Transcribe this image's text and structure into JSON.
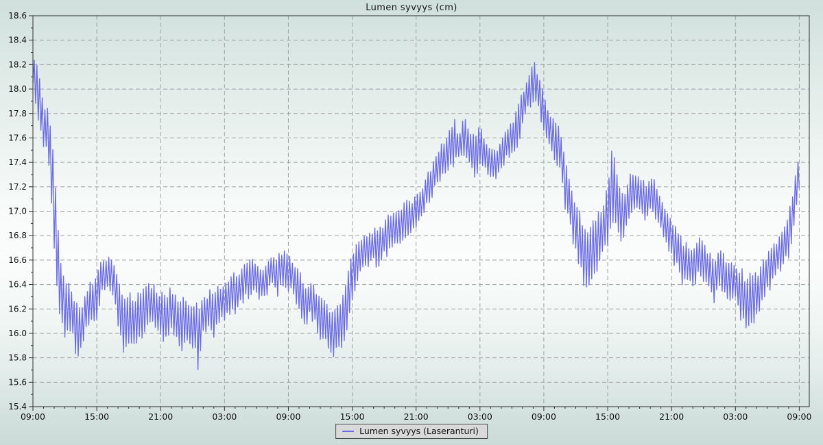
{
  "title": "Lumen syvyys (cm)",
  "legend": {
    "label": "Lumen syvyys (Laseranturi)"
  },
  "colors": {
    "line": "#6b6be4",
    "grid": "#a0a0a0",
    "axis": "#2e2e2e",
    "tick_text": "#111111",
    "legend_bg": "#d9d9da",
    "legend_border": "#4a4a4a"
  },
  "chart_data": {
    "type": "line",
    "title": "Lumen syvyys (cm)",
    "series_name": "Lumen syvyys (Laseranturi)",
    "xlabel": "",
    "ylabel": "",
    "grid": true,
    "legend_position": "bottom-center",
    "ylim": [
      15.4,
      18.6
    ],
    "y_major_step": 0.2,
    "y_minor_step": 0.1,
    "y_tick_labels": [
      "15.4",
      "15.6",
      "15.8",
      "16.0",
      "16.2",
      "16.4",
      "16.6",
      "16.8",
      "17.0",
      "17.2",
      "17.4",
      "17.6",
      "17.8",
      "18.0",
      "18.2",
      "18.4",
      "18.6"
    ],
    "x_hours_total": 72,
    "x_major_step_hours": 6,
    "x_minor_step_hours": 1,
    "x_tick_labels": [
      "09:00",
      "15:00",
      "21:00",
      "03:00",
      "09:00",
      "15:00",
      "21:00",
      "03:00",
      "09:00",
      "15:00",
      "21:00",
      "03:00",
      "09:00"
    ],
    "envelope_description": "Noisy laser-sensor snow-depth trace read from plot as 30-min bins: [hours_from_start, min_cm, max_cm]",
    "envelope": [
      [
        0.0,
        18.05,
        18.32
      ],
      [
        0.5,
        17.7,
        18.22
      ],
      [
        1.0,
        17.5,
        17.85
      ],
      [
        1.5,
        17.35,
        17.95
      ],
      [
        2.0,
        16.5,
        17.45
      ],
      [
        2.5,
        16.05,
        16.7
      ],
      [
        3.0,
        15.95,
        16.45
      ],
      [
        3.5,
        16.0,
        16.4
      ],
      [
        4.0,
        15.8,
        16.3
      ],
      [
        4.5,
        15.78,
        16.25
      ],
      [
        5.0,
        16.0,
        16.4
      ],
      [
        5.5,
        16.05,
        16.45
      ],
      [
        6.0,
        16.1,
        16.5
      ],
      [
        6.5,
        16.3,
        16.62
      ],
      [
        7.0,
        16.35,
        16.65
      ],
      [
        7.5,
        16.3,
        16.6
      ],
      [
        8.0,
        16.05,
        16.45
      ],
      [
        8.5,
        15.8,
        16.3
      ],
      [
        9.0,
        15.9,
        16.35
      ],
      [
        9.5,
        15.9,
        16.3
      ],
      [
        10.0,
        15.9,
        16.35
      ],
      [
        10.5,
        16.0,
        16.4
      ],
      [
        11.0,
        16.05,
        16.45
      ],
      [
        11.5,
        16.0,
        16.4
      ],
      [
        12.0,
        15.9,
        16.35
      ],
      [
        12.5,
        15.95,
        16.35
      ],
      [
        13.0,
        16.0,
        16.4
      ],
      [
        13.5,
        15.9,
        16.35
      ],
      [
        14.0,
        15.85,
        16.3
      ],
      [
        14.5,
        15.9,
        16.3
      ],
      [
        15.0,
        15.85,
        16.3
      ],
      [
        15.5,
        15.7,
        16.25
      ],
      [
        16.0,
        15.95,
        16.3
      ],
      [
        16.5,
        16.0,
        16.35
      ],
      [
        17.0,
        15.95,
        16.4
      ],
      [
        17.5,
        16.05,
        16.4
      ],
      [
        18.0,
        16.1,
        16.45
      ],
      [
        18.5,
        16.1,
        16.5
      ],
      [
        19.0,
        16.15,
        16.5
      ],
      [
        19.5,
        16.2,
        16.55
      ],
      [
        20.0,
        16.25,
        16.6
      ],
      [
        20.5,
        16.3,
        16.65
      ],
      [
        21.0,
        16.3,
        16.6
      ],
      [
        21.5,
        16.25,
        16.55
      ],
      [
        22.0,
        16.3,
        16.6
      ],
      [
        22.5,
        16.35,
        16.65
      ],
      [
        23.0,
        16.3,
        16.65
      ],
      [
        23.5,
        16.35,
        16.7
      ],
      [
        24.0,
        16.3,
        16.65
      ],
      [
        24.5,
        16.3,
        16.6
      ],
      [
        25.0,
        16.15,
        16.55
      ],
      [
        25.5,
        16.0,
        16.4
      ],
      [
        26.0,
        16.1,
        16.45
      ],
      [
        26.5,
        16.05,
        16.4
      ],
      [
        27.0,
        15.85,
        16.3
      ],
      [
        27.5,
        15.9,
        16.3
      ],
      [
        28.0,
        15.8,
        16.2
      ],
      [
        28.5,
        15.8,
        16.25
      ],
      [
        29.0,
        15.8,
        16.3
      ],
      [
        29.5,
        16.0,
        16.5
      ],
      [
        30.0,
        16.2,
        16.7
      ],
      [
        30.5,
        16.4,
        16.75
      ],
      [
        31.0,
        16.5,
        16.85
      ],
      [
        31.5,
        16.5,
        16.8
      ],
      [
        32.0,
        16.55,
        16.9
      ],
      [
        32.5,
        16.5,
        16.85
      ],
      [
        33.0,
        16.6,
        16.95
      ],
      [
        33.5,
        16.65,
        17.0
      ],
      [
        34.0,
        16.7,
        17.0
      ],
      [
        34.5,
        16.7,
        17.05
      ],
      [
        35.0,
        16.75,
        17.1
      ],
      [
        35.5,
        16.8,
        17.1
      ],
      [
        36.0,
        16.85,
        17.15
      ],
      [
        36.5,
        16.9,
        17.2
      ],
      [
        37.0,
        17.0,
        17.3
      ],
      [
        37.5,
        17.1,
        17.4
      ],
      [
        38.0,
        17.2,
        17.5
      ],
      [
        38.5,
        17.25,
        17.6
      ],
      [
        39.0,
        17.3,
        17.65
      ],
      [
        39.5,
        17.35,
        17.8
      ],
      [
        40.0,
        17.4,
        17.65
      ],
      [
        40.5,
        17.4,
        17.8
      ],
      [
        41.0,
        17.35,
        17.7
      ],
      [
        41.5,
        17.2,
        17.65
      ],
      [
        42.0,
        17.35,
        17.8
      ],
      [
        42.5,
        17.3,
        17.6
      ],
      [
        43.0,
        17.25,
        17.55
      ],
      [
        43.5,
        17.25,
        17.5
      ],
      [
        44.0,
        17.3,
        17.6
      ],
      [
        44.5,
        17.4,
        17.7
      ],
      [
        45.0,
        17.45,
        17.75
      ],
      [
        45.5,
        17.45,
        17.85
      ],
      [
        46.0,
        17.65,
        18.0
      ],
      [
        46.5,
        17.8,
        18.1
      ],
      [
        47.0,
        17.85,
        18.3
      ],
      [
        47.5,
        17.8,
        18.1
      ],
      [
        48.0,
        17.65,
        18.0
      ],
      [
        48.5,
        17.5,
        17.85
      ],
      [
        49.0,
        17.4,
        17.75
      ],
      [
        49.5,
        17.3,
        17.7
      ],
      [
        50.0,
        17.0,
        17.5
      ],
      [
        50.5,
        16.85,
        17.25
      ],
      [
        51.0,
        16.6,
        17.1
      ],
      [
        51.5,
        16.45,
        17.0
      ],
      [
        52.0,
        16.25,
        16.9
      ],
      [
        52.5,
        16.4,
        16.95
      ],
      [
        53.0,
        16.5,
        17.0
      ],
      [
        53.5,
        16.55,
        17.1
      ],
      [
        54.0,
        16.7,
        17.2
      ],
      [
        54.5,
        16.8,
        17.6
      ],
      [
        55.0,
        16.8,
        17.3
      ],
      [
        55.5,
        16.7,
        17.2
      ],
      [
        56.0,
        16.9,
        17.3
      ],
      [
        56.5,
        16.95,
        17.35
      ],
      [
        57.0,
        17.0,
        17.3
      ],
      [
        57.5,
        16.9,
        17.25
      ],
      [
        58.0,
        16.95,
        17.3
      ],
      [
        58.5,
        16.9,
        17.25
      ],
      [
        59.0,
        16.8,
        17.15
      ],
      [
        59.5,
        16.7,
        17.05
      ],
      [
        60.0,
        16.6,
        16.95
      ],
      [
        60.5,
        16.5,
        16.9
      ],
      [
        61.0,
        16.35,
        16.8
      ],
      [
        61.5,
        16.4,
        16.75
      ],
      [
        62.0,
        16.3,
        16.7
      ],
      [
        62.5,
        16.45,
        16.85
      ],
      [
        63.0,
        16.4,
        16.75
      ],
      [
        63.5,
        16.3,
        16.7
      ],
      [
        64.0,
        16.2,
        16.65
      ],
      [
        64.5,
        16.35,
        16.7
      ],
      [
        65.0,
        16.3,
        16.65
      ],
      [
        65.5,
        16.2,
        16.6
      ],
      [
        66.0,
        16.3,
        16.6
      ],
      [
        66.5,
        16.1,
        16.55
      ],
      [
        67.0,
        16.0,
        16.5
      ],
      [
        67.5,
        16.05,
        16.5
      ],
      [
        68.0,
        16.1,
        16.5
      ],
      [
        68.5,
        16.2,
        16.6
      ],
      [
        69.0,
        16.3,
        16.7
      ],
      [
        69.5,
        16.4,
        16.75
      ],
      [
        70.0,
        16.45,
        16.8
      ],
      [
        70.5,
        16.5,
        16.85
      ],
      [
        71.0,
        16.6,
        17.0
      ],
      [
        71.5,
        16.85,
        17.25
      ],
      [
        72.0,
        17.15,
        17.5
      ]
    ]
  }
}
